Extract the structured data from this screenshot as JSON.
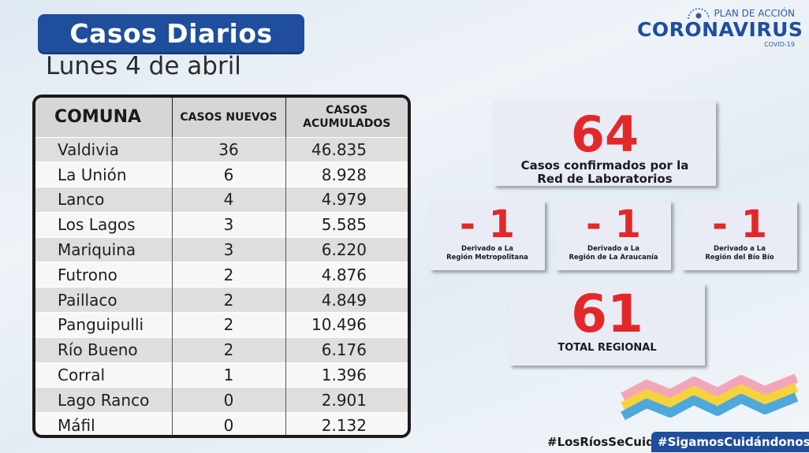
{
  "header": {
    "title": "Casos Diarios",
    "subtitle": "Lunes 4 de abril"
  },
  "logo": {
    "top": "PLAN DE ACCIÓN",
    "main": "CORONAVIRUS",
    "sub": "COVID-19",
    "icon": "seal-icon"
  },
  "table": {
    "headers": [
      "COMUNA",
      "CASOS NUEVOS",
      "CASOS",
      "ACUMULADOS"
    ],
    "rows": [
      {
        "comuna": "Valdivia",
        "nuevos": "36",
        "acumulados": "46.835"
      },
      {
        "comuna": "La Unión",
        "nuevos": "6",
        "acumulados": "8.928"
      },
      {
        "comuna": "Lanco",
        "nuevos": "4",
        "acumulados": "4.979"
      },
      {
        "comuna": "Los Lagos",
        "nuevos": "3",
        "acumulados": "5.585"
      },
      {
        "comuna": "Mariquina",
        "nuevos": "3",
        "acumulados": "6.220"
      },
      {
        "comuna": "Futrono",
        "nuevos": "2",
        "acumulados": "4.876"
      },
      {
        "comuna": "Paillaco",
        "nuevos": "2",
        "acumulados": "4.849"
      },
      {
        "comuna": "Panguipulli",
        "nuevos": "2",
        "acumulados": "10.496"
      },
      {
        "comuna": "Río Bueno",
        "nuevos": "2",
        "acumulados": "6.176"
      },
      {
        "comuna": "Corral",
        "nuevos": "1",
        "acumulados": "1.396"
      },
      {
        "comuna": "Lago Ranco",
        "nuevos": "0",
        "acumulados": "2.901"
      },
      {
        "comuna": "Máfil",
        "nuevos": "0",
        "acumulados": "2.132"
      }
    ]
  },
  "summary": {
    "confirmed": {
      "value": "64",
      "label_line1": "Casos confirmados  por la",
      "label_line2": "Red de Laboratorios"
    },
    "derived": [
      {
        "value": "- 1",
        "label_line1": "Derivado a La",
        "label_line2": "Región Metropolitana"
      },
      {
        "value": "- 1",
        "label_line1": "Derivado a La",
        "label_line2": "Región de La Araucanía"
      },
      {
        "value": "- 1",
        "label_line1": "Derivado a La",
        "label_line2": "Región del Bío Bío"
      }
    ],
    "total": {
      "value": "61",
      "label": "TOTAL REGIONAL"
    }
  },
  "footer": {
    "hashtag1": "#LosRíosSeCuida",
    "hashtag2": "#SigamosCuidándonos"
  },
  "colors": {
    "brand_blue": "#1f4e9c",
    "accent_red": "#e3282a",
    "wave_pink": "#f2a7b8",
    "wave_yellow": "#f6d33c",
    "wave_blue": "#4fa8dc"
  }
}
